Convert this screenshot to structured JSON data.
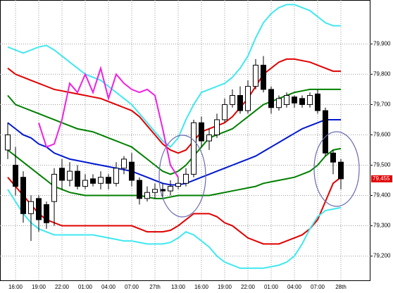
{
  "chart_data": {
    "type": "candlestick",
    "categories": [
      null,
      "16:00",
      null,
      null,
      "19:00",
      null,
      null,
      "22:00",
      null,
      null,
      "01:00",
      null,
      null,
      "04:00",
      null,
      null,
      "07:00",
      null,
      null,
      "27th",
      null,
      null,
      "13:00",
      null,
      null,
      "16:00",
      null,
      null,
      "19:00",
      null,
      null,
      "22:00",
      null,
      null,
      "01:00",
      null,
      null,
      "04:00",
      null,
      null,
      "07:00",
      null,
      null,
      "28th"
    ],
    "open": [
      79550,
      79500,
      79460,
      79340,
      79390,
      79370,
      79380,
      79490,
      79450,
      79480,
      79430,
      79455,
      79440,
      79460,
      79440,
      79490,
      79510,
      79450,
      79390,
      79410,
      79420,
      79415,
      79430,
      79440,
      79470,
      79640,
      79580,
      79600,
      79650,
      79700,
      79730,
      79680,
      79760,
      79830,
      79750,
      79690,
      79700,
      79725,
      79720,
      79700,
      79735,
      79680,
      79540,
      79510
    ],
    "high": [
      79640,
      79560,
      79480,
      79400,
      79400,
      79380,
      79490,
      79520,
      79510,
      79500,
      79470,
      79470,
      79480,
      79470,
      79510,
      79530,
      79540,
      79460,
      79430,
      79440,
      79440,
      79450,
      79460,
      79490,
      79650,
      79660,
      79620,
      79670,
      79720,
      79750,
      79760,
      79780,
      79850,
      79860,
      79760,
      79730,
      79740,
      79730,
      79730,
      79740,
      79750,
      79690,
      79550,
      79520
    ],
    "low": [
      79520,
      79400,
      79310,
      79250,
      79280,
      79290,
      79300,
      79420,
      79430,
      79420,
      79420,
      79430,
      79420,
      79420,
      79430,
      79470,
      79430,
      79370,
      79380,
      79390,
      79390,
      79400,
      79420,
      79430,
      79460,
      79560,
      79550,
      79590,
      79640,
      79690,
      79670,
      79670,
      79750,
      79740,
      79670,
      79680,
      79690,
      79690,
      79690,
      79690,
      79670,
      79530,
      79470,
      79420
    ],
    "close": [
      79600,
      79430,
      79340,
      79380,
      79320,
      79310,
      79470,
      79450,
      79480,
      79430,
      79450,
      79440,
      79460,
      79440,
      79490,
      79520,
      79450,
      79390,
      79410,
      79420,
      79415,
      79430,
      79440,
      79470,
      79640,
      79580,
      79600,
      79650,
      79700,
      79730,
      79680,
      79760,
      79830,
      79750,
      79690,
      79720,
      79730,
      79705,
      79700,
      79730,
      79680,
      79540,
      79510,
      79455
    ],
    "up_color": "#ffffff",
    "down_color": "#000000",
    "series": [
      {
        "color": "#40e8f0",
        "values": [
          79890,
          79880,
          79870,
          79880,
          79890,
          79895,
          79880,
          79860,
          79840,
          79820,
          79800,
          79790,
          79780,
          79760,
          79740,
          79720,
          79700,
          79670,
          79640,
          79610,
          79580,
          79560,
          79590,
          79650,
          79700,
          79740,
          79750,
          79760,
          79770,
          79790,
          79820,
          79860,
          79920,
          79970,
          80000,
          80020,
          80030,
          80030,
          80020,
          80010,
          79990,
          79970,
          79960,
          79960
        ]
      },
      {
        "color": "#e00000",
        "values": [
          79820,
          79800,
          79790,
          79780,
          79770,
          79760,
          79750,
          79745,
          79740,
          79735,
          79730,
          79725,
          79720,
          79710,
          79700,
          79690,
          79680,
          79660,
          79630,
          79600,
          79570,
          79550,
          79540,
          79550,
          79580,
          79610,
          79620,
          79630,
          79640,
          79660,
          79690,
          79720,
          79760,
          79800,
          79820,
          79840,
          79850,
          79850,
          79845,
          79840,
          79830,
          79820,
          79810,
          79810
        ]
      },
      {
        "color": "#008000",
        "values": [
          79730,
          79700,
          79690,
          79680,
          79670,
          79660,
          79650,
          79640,
          79630,
          79620,
          79615,
          79610,
          79600,
          79590,
          79580,
          79570,
          79560,
          79540,
          79520,
          79500,
          79480,
          79470,
          79480,
          79500,
          79530,
          79560,
          79590,
          79600,
          79610,
          79620,
          79640,
          79660,
          79680,
          79700,
          79710,
          79720,
          79730,
          79740,
          79745,
          79750,
          79750,
          79750,
          79750,
          79750
        ]
      },
      {
        "color": "#0018d0",
        "values": [
          79640,
          79620,
          79600,
          79590,
          79570,
          79560,
          79540,
          79530,
          79520,
          79515,
          79510,
          79505,
          79500,
          79495,
          79490,
          79485,
          79480,
          79470,
          79460,
          79450,
          79440,
          79435,
          79435,
          79440,
          79450,
          79460,
          79470,
          79480,
          79490,
          79500,
          79510,
          79520,
          79530,
          79545,
          79560,
          79575,
          79590,
          79605,
          79620,
          79630,
          79640,
          79650,
          79650,
          79650
        ]
      },
      {
        "color": "#008000",
        "values": [
          79550,
          79530,
          79510,
          79490,
          79470,
          79450,
          79430,
          79420,
          79410,
          79405,
          79400,
          79400,
          79400,
          79400,
          79400,
          79400,
          79400,
          79400,
          79395,
          79390,
          79390,
          79395,
          79400,
          79400,
          79400,
          79400,
          79400,
          79405,
          79410,
          79415,
          79420,
          79425,
          79430,
          79440,
          79445,
          79450,
          79455,
          79460,
          79470,
          79480,
          79500,
          79530,
          79550,
          79555
        ]
      },
      {
        "color": "#e00000",
        "values": [
          79460,
          79430,
          79400,
          79370,
          79340,
          79320,
          79310,
          79300,
          79300,
          79300,
          79300,
          79300,
          79300,
          79300,
          79300,
          79300,
          79300,
          79290,
          79280,
          79280,
          79280,
          79285,
          79300,
          79320,
          79340,
          79340,
          79340,
          79330,
          79310,
          79300,
          79280,
          79260,
          79250,
          79240,
          79240,
          79240,
          79250,
          79260,
          79270,
          79290,
          79320,
          79380,
          79440,
          79460
        ]
      },
      {
        "color": "#40e8f0",
        "values": [
          79420,
          79380,
          79340,
          79310,
          79290,
          79280,
          79270,
          79270,
          79270,
          79270,
          79270,
          79270,
          79265,
          79260,
          79255,
          79250,
          79250,
          79245,
          79240,
          79240,
          79240,
          79245,
          79260,
          79280,
          79270,
          79250,
          79230,
          79200,
          79180,
          79170,
          79160,
          79160,
          79160,
          79160,
          79165,
          79170,
          79180,
          79200,
          79240,
          79290,
          79330,
          79350,
          79355,
          79360
        ]
      },
      {
        "color": "#f020e0",
        "values": [
          null,
          null,
          null,
          null,
          79640,
          79560,
          79570,
          79650,
          79770,
          79740,
          79800,
          79740,
          79820,
          79720,
          79800,
          79770,
          79750,
          79740,
          79750,
          79730,
          79620,
          79500,
          79460,
          null,
          null,
          null,
          null,
          null,
          null,
          null,
          null,
          null,
          null,
          null,
          null,
          null,
          null,
          null,
          null,
          null,
          null,
          null,
          null,
          null
        ]
      }
    ],
    "ylim": [
      79120,
      80045
    ],
    "yticks": [
      {
        "value": 79200,
        "label": "79,200"
      },
      {
        "value": 79300,
        "label": "79,300"
      },
      {
        "value": 79400,
        "label": "79,400"
      },
      {
        "value": 79500,
        "label": "79,500"
      },
      {
        "value": 79600,
        "label": "79,600"
      },
      {
        "value": 79700,
        "label": "79,700"
      },
      {
        "value": 79800,
        "label": "79,800"
      },
      {
        "value": 79900,
        "label": "79,900"
      }
    ],
    "last_price": {
      "value": 79455,
      "label": "79,455"
    },
    "grid": true
  }
}
